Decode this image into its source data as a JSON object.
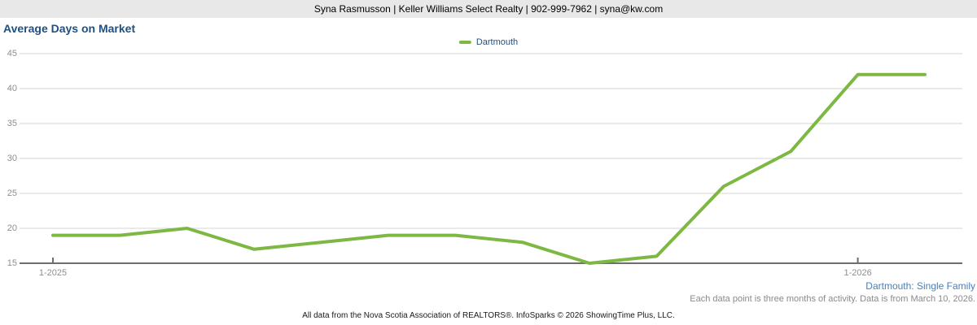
{
  "header": {
    "text": "Syna Rasmusson | Keller Williams Select Realty | 902-999-7962 | syna@kw.com"
  },
  "title": "Average Days on Market",
  "legend": {
    "items": [
      {
        "label": "Dartmouth",
        "color": "#7cb842"
      }
    ]
  },
  "chart_data": {
    "type": "line",
    "title": "Average Days on Market",
    "x": [
      "1-2025",
      "2-2025",
      "3-2025",
      "4-2025",
      "5-2025",
      "6-2025",
      "7-2025",
      "8-2025",
      "9-2025",
      "10-2025",
      "11-2025",
      "12-2025",
      "1-2026",
      "2-2026"
    ],
    "series": [
      {
        "name": "Dartmouth",
        "color": "#7cb842",
        "values": [
          19,
          19,
          20,
          17,
          18,
          19,
          19,
          18,
          15,
          16,
          26,
          31,
          42,
          42
        ]
      }
    ],
    "xlabel": "",
    "ylabel": "",
    "ylim": [
      15,
      45
    ],
    "yticks": [
      15,
      20,
      25,
      30,
      35,
      40,
      45
    ],
    "xticks_shown": [
      "1-2025",
      "1-2026"
    ],
    "grid": "horizontal",
    "legend_position": "top-center"
  },
  "footnotes": {
    "series_context": "Dartmouth: Single Family",
    "data_note": "Each data point is three months of activity. Data is from March 10, 2026.",
    "attribution": "All data from the Nova Scotia Association of REALTORS®. InfoSparks © 2026 ShowingTime Plus, LLC."
  },
  "colors": {
    "series_green": "#7cb842",
    "title_navy": "#1f5081",
    "context_blue": "#4a7eb5",
    "axis_text_gray": "#8e8e8e",
    "gridline_gray": "#d6d6d6",
    "axis_line_gray": "#6e6e6e",
    "header_bg": "#e8e8e8"
  }
}
